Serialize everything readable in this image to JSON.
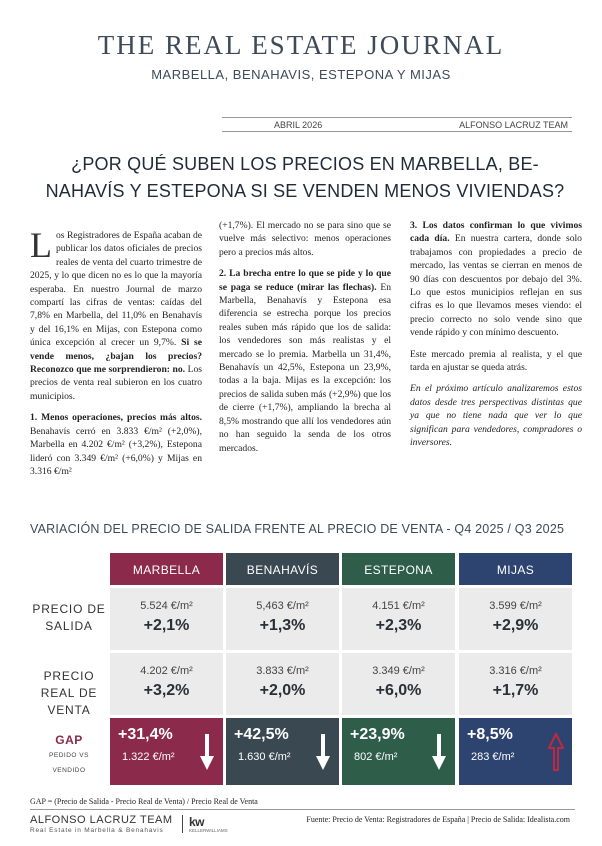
{
  "masthead": {
    "title": "THE REAL ESTATE JOURNAL",
    "subtitle": "MARBELLA, BENAHAVIS, ESTEPONA Y MIJAS"
  },
  "dateline": {
    "date": "ABRIL 2026",
    "team": "ALFONSO LACRUZ TEAM"
  },
  "headline": {
    "line1": "¿POR QUÉ SUBEN LOS PRECIOS EN MARBELLA, BE-",
    "line2": "NAHAVÍS Y ESTEPONA SI SE VENDEN MENOS VIVIENDAS?"
  },
  "article": {
    "c1": {
      "dropcap": "L",
      "p1": "os Registradores de España acaban de publicar los datos oficiales de precios reales de venta del cuarto trimestre de 2025, y lo que dicen no es lo que la mayoría esperaba. En nuestro Journal de marzo compartí las cifras de ventas: caídas del 7,8% en Marbella, del 11,0% en Benahavís y del 16,1% en Mijas, con Estepona como única excepción al crecer un 9,7%.",
      "p1_bold": "Si se vende menos, ¿bajan los precios? Reconozco que me sorprendieron: no.",
      "p1_end": "Los precios de venta real subieron en los cuatro municipios.",
      "p2_bold": "1. Menos operaciones, precios más altos.",
      "p2": "Benahavís cerró en 3.833 €/m² (+2,0%), Marbella en 4.202 €/m² (+3,2%), Estepona lideró con 3.349 €/m² (+6,0%) y Mijas en 3.316 €/m²"
    },
    "c2": {
      "p1": "(+1,7%). El mercado no se para sino que se vuelve más selectivo: menos operaciones pero a precios más altos.",
      "p2_bold": "2. La brecha entre lo que se pide y lo que se paga se reduce (mirar las flechas).",
      "p2": "En Marbella, Benahavís y Estepona esa diferencia se estrecha porque los precios reales suben más rápido que los de salida: los vendedores son más realistas y el mercado se lo premia. Marbella un 31,4%, Benahavís un 42,5%, Estepona un 23,9%, todas a la baja. Mijas es la excepción: los precios de salida suben más (+2,9%) que los de cierre (+1,7%), ampliando la brecha al 8,5% mostrando que allí los vendedores aún no han seguido la senda de los otros mercados."
    },
    "c3": {
      "p1_bold": "3. Los datos confirman lo que vivimos cada día.",
      "p1": "En nuestra cartera, donde solo trabajamos con propiedades a precio de mercado, las ventas se cierran en menos de 90 días con descuentos por debajo del 3%. Lo que estos municipios reflejan en sus cifras es lo que llevamos meses viendo: el precio correcto no solo vende sino que vende rápido y con mínimo descuento.",
      "p2": "Este mercado premia al realista, y el que tarda en ajustar se queda atrás.",
      "p3": "En el próximo artículo analizaremos estos datos desde tres perspectivas distintas que ya que no tiene nada que ver lo que significan para vendedores, compradores o inversores."
    }
  },
  "table": {
    "title": "VARIACIÓN DEL PRECIO DE SALIDA FRENTE AL PRECIO DE VENTA - Q4 2025 / Q3 2025",
    "row_labels": {
      "salida": [
        "PRECIO DE",
        "SALIDA"
      ],
      "venta": [
        "PRECIO",
        "REAL DE",
        "VENTA"
      ],
      "gap": "GAP",
      "gap_sub1": "PEDIDO VS",
      "gap_sub2": "VENDIDO"
    },
    "columns": [
      {
        "name": "MARBELLA",
        "color": "#8b2a4a",
        "salida_value": "5.524 €/m²",
        "salida_pct": "+2,1%",
        "venta_value": "4.202 €/m²",
        "venta_pct": "+3,2%",
        "gap_pct": "+31,4%",
        "gap_value": "1.322 €/m²",
        "arrow": "down-arrow-icon"
      },
      {
        "name": "BENAHAVÍS",
        "color": "#3a4852",
        "salida_value": "5,463 €/m²",
        "salida_pct": "+1,3%",
        "venta_value": "3.833 €/m²",
        "venta_pct": "+2,0%",
        "gap_pct": "+42,5%",
        "gap_value": "1.630 €/m²",
        "arrow": "down-arrow-icon"
      },
      {
        "name": "ESTEPONA",
        "color": "#2e5e4a",
        "salida_value": "4.151 €/m²",
        "salida_pct": "+2,3%",
        "venta_value": "3.349 €/m²",
        "venta_pct": "+6,0%",
        "gap_pct": "+23,9%",
        "gap_value": "802 €/m²",
        "arrow": "down-arrow-icon"
      },
      {
        "name": "MIJAS",
        "color": "#2e4470",
        "salida_value": "3.599 €/m²",
        "salida_pct": "+2,9%",
        "venta_value": "3.316 €/m²",
        "venta_pct": "+1,7%",
        "gap_pct": "+8,5%",
        "gap_value": "283 €/m²",
        "arrow": "up-arrow-icon"
      }
    ],
    "gap_note": "GAP = (Precio de Salida - Precio Real de Venta) / Precio Real de Venta"
  },
  "footer": {
    "brand": "ALFONSO LACRUZ TEAM",
    "brand_sub": "Real Estate in Marbella & Benahavis",
    "logo_text": "kw",
    "logo_sub": "KELLERWILLIAMS",
    "source": "Fuente: Precio de Venta: Registradores de España | Precio de Salida: Idealista.com"
  },
  "colors": {
    "accent_red": "#8b2a4a",
    "text_dark": "#3c4a5a",
    "cell_bg": "#ebebeb"
  }
}
